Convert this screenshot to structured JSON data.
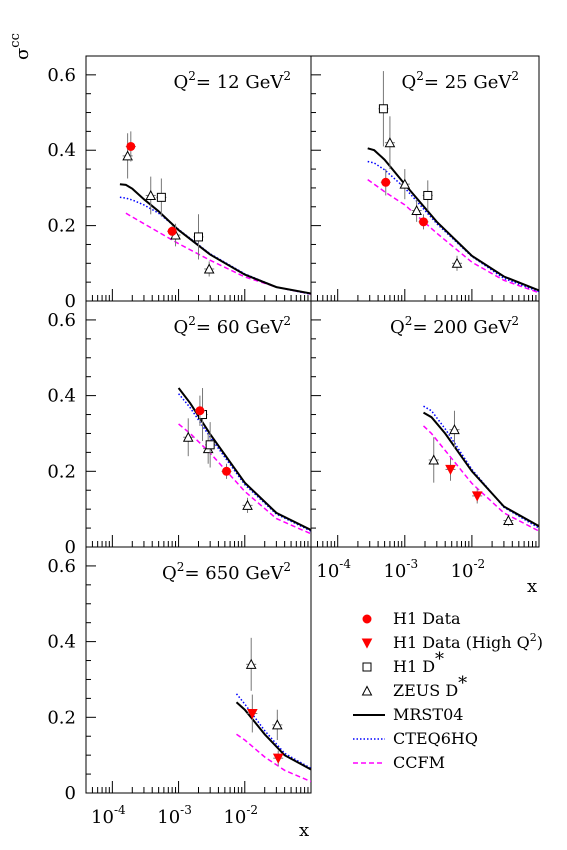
{
  "chart_data": {
    "type": "scatter",
    "ylabel": "σ̃ cc̄",
    "ylabel_main": "σ",
    "ylabel_sup": "cc",
    "xlabel": "x",
    "x_scale": "log",
    "xlim": [
      4e-05,
      0.1
    ],
    "ylim": [
      0,
      0.65
    ],
    "y_ticks": [
      "0",
      "0.2",
      "0.4",
      "0.6"
    ],
    "x_ticks": [
      {
        "base": "10",
        "exp": "-4"
      },
      {
        "base": "10",
        "exp": "-3"
      },
      {
        "base": "10",
        "exp": "-2"
      }
    ],
    "legend": {
      "position": "bottom-right",
      "entries": [
        {
          "key": "h1",
          "label": "H1 Data",
          "marker": "circle",
          "color": "#ff0000"
        },
        {
          "key": "h1high",
          "label_prefix": "H1 Data (High Q",
          "label_sup": "2",
          "label_suffix": ")",
          "marker": "triangle-down",
          "color": "#ff0000"
        },
        {
          "key": "h1dstar",
          "label_prefix": "H1 D",
          "label_sup": "*",
          "marker": "open-square",
          "color": "#000000"
        },
        {
          "key": "zeus",
          "label_prefix": "ZEUS D",
          "label_sup": "*",
          "marker": "open-triangle",
          "color": "#000000"
        },
        {
          "key": "mrst",
          "label": "MRST04",
          "line": "solid",
          "color": "#000000"
        },
        {
          "key": "cteq",
          "label": "CTEQ6HQ",
          "line": "dotted",
          "color": "#0000ff"
        },
        {
          "key": "ccfm",
          "label": "CCFM",
          "line": "dashed",
          "color": "#ff00ff"
        }
      ]
    },
    "panels": [
      {
        "label_prefix": "Q",
        "label_sup": "2",
        "label_value": "= 12 GeV",
        "label_sup2": "2",
        "h1": [
          {
            "x": 0.00019,
            "y": 0.41,
            "err": 0.04
          },
          {
            "x": 0.0008,
            "y": 0.185,
            "err": 0.015
          }
        ],
        "h1high": [],
        "h1dstar": [
          {
            "x": 0.00055,
            "y": 0.275,
            "err": 0.05
          },
          {
            "x": 0.002,
            "y": 0.17,
            "err": 0.06
          }
        ],
        "zeus": [
          {
            "x": 0.00017,
            "y": 0.385,
            "err": 0.06
          },
          {
            "x": 0.00038,
            "y": 0.28,
            "err": 0.05
          },
          {
            "x": 0.0009,
            "y": 0.175,
            "err": 0.03
          },
          {
            "x": 0.0029,
            "y": 0.085,
            "err": 0.02
          }
        ],
        "mrst": [
          [
            0.00013,
            0.31
          ],
          [
            0.00016,
            0.308
          ],
          [
            0.0002,
            0.298
          ],
          [
            0.0003,
            0.27
          ],
          [
            0.0005,
            0.238
          ],
          [
            0.001,
            0.188
          ],
          [
            0.003,
            0.123
          ],
          [
            0.01,
            0.07
          ],
          [
            0.03,
            0.037
          ],
          [
            0.1,
            0.02
          ]
        ],
        "cteq": [
          [
            0.00013,
            0.275
          ],
          [
            0.00016,
            0.273
          ],
          [
            0.0002,
            0.268
          ],
          [
            0.0003,
            0.255
          ],
          [
            0.0005,
            0.233
          ],
          [
            0.001,
            0.19
          ],
          [
            0.003,
            0.125
          ],
          [
            0.01,
            0.072
          ],
          [
            0.03,
            0.037
          ],
          [
            0.1,
            0.018
          ]
        ],
        "ccfm": [
          [
            0.00016,
            0.233
          ],
          [
            0.0003,
            0.205
          ],
          [
            0.001,
            0.152
          ],
          [
            0.003,
            0.108
          ],
          [
            0.01,
            0.064
          ],
          [
            0.03,
            0.037
          ],
          [
            0.1,
            0.018
          ]
        ]
      },
      {
        "label_prefix": "Q",
        "label_sup": "2",
        "label_value": "= 25 GeV",
        "label_sup2": "2",
        "h1": [
          {
            "x": 0.00052,
            "y": 0.315,
            "err": 0.035
          },
          {
            "x": 0.0019,
            "y": 0.21,
            "err": 0.02
          }
        ],
        "h1high": [],
        "h1dstar": [
          {
            "x": 0.00048,
            "y": 0.51,
            "err": 0.1
          },
          {
            "x": 0.0022,
            "y": 0.28,
            "err": 0.04
          }
        ],
        "zeus": [
          {
            "x": 0.0006,
            "y": 0.42,
            "err": 0.07
          },
          {
            "x": 0.001,
            "y": 0.31,
            "err": 0.04
          },
          {
            "x": 0.0015,
            "y": 0.24,
            "err": 0.03
          },
          {
            "x": 0.006,
            "y": 0.1,
            "err": 0.02
          }
        ],
        "mrst": [
          [
            0.00028,
            0.405
          ],
          [
            0.00035,
            0.4
          ],
          [
            0.0005,
            0.375
          ],
          [
            0.001,
            0.31
          ],
          [
            0.003,
            0.21
          ],
          [
            0.01,
            0.12
          ],
          [
            0.03,
            0.065
          ],
          [
            0.1,
            0.028
          ]
        ],
        "cteq": [
          [
            0.00028,
            0.37
          ],
          [
            0.00035,
            0.366
          ],
          [
            0.0005,
            0.348
          ],
          [
            0.001,
            0.3
          ],
          [
            0.003,
            0.205
          ],
          [
            0.01,
            0.118
          ],
          [
            0.03,
            0.06
          ],
          [
            0.1,
            0.025
          ]
        ],
        "ccfm": [
          [
            0.00028,
            0.322
          ],
          [
            0.0005,
            0.29
          ],
          [
            0.001,
            0.255
          ],
          [
            0.003,
            0.18
          ],
          [
            0.01,
            0.103
          ],
          [
            0.03,
            0.055
          ],
          [
            0.1,
            0.022
          ]
        ]
      },
      {
        "label_prefix": "Q",
        "label_sup": "2",
        "label_value": "= 60 GeV",
        "label_sup2": "2",
        "h1": [
          {
            "x": 0.0021,
            "y": 0.36,
            "err": 0.04
          },
          {
            "x": 0.0053,
            "y": 0.2,
            "err": 0.02
          }
        ],
        "h1high": [],
        "h1dstar": [
          {
            "x": 0.0023,
            "y": 0.35,
            "err": 0.07
          },
          {
            "x": 0.003,
            "y": 0.27,
            "err": 0.06
          }
        ],
        "zeus": [
          {
            "x": 0.0014,
            "y": 0.29,
            "err": 0.05
          },
          {
            "x": 0.0028,
            "y": 0.26,
            "err": 0.04
          },
          {
            "x": 0.011,
            "y": 0.11,
            "err": 0.02
          }
        ],
        "mrst": [
          [
            0.001,
            0.42
          ],
          [
            0.0015,
            0.38
          ],
          [
            0.003,
            0.298
          ],
          [
            0.01,
            0.17
          ],
          [
            0.03,
            0.09
          ],
          [
            0.1,
            0.045
          ]
        ],
        "cteq": [
          [
            0.001,
            0.405
          ],
          [
            0.0015,
            0.368
          ],
          [
            0.003,
            0.29
          ],
          [
            0.01,
            0.165
          ],
          [
            0.03,
            0.087
          ],
          [
            0.1,
            0.042
          ]
        ],
        "ccfm": [
          [
            0.001,
            0.325
          ],
          [
            0.0015,
            0.3
          ],
          [
            0.003,
            0.248
          ],
          [
            0.01,
            0.147
          ],
          [
            0.03,
            0.075
          ],
          [
            0.1,
            0.035
          ]
        ]
      },
      {
        "label_prefix": "Q",
        "label_sup": "2",
        "label_value": "= 200 GeV",
        "label_sup2": "2",
        "h1": [],
        "h1high": [
          {
            "x": 0.0048,
            "y": 0.205,
            "err": 0.03
          },
          {
            "x": 0.012,
            "y": 0.135,
            "err": 0.02
          }
        ],
        "h1dstar": [],
        "zeus": [
          {
            "x": 0.0027,
            "y": 0.23,
            "err": 0.06
          },
          {
            "x": 0.0055,
            "y": 0.31,
            "err": 0.05
          },
          {
            "x": 0.035,
            "y": 0.07,
            "err": 0.015
          }
        ],
        "mrst": [
          [
            0.0019,
            0.355
          ],
          [
            0.0025,
            0.343
          ],
          [
            0.004,
            0.3
          ],
          [
            0.01,
            0.2
          ],
          [
            0.03,
            0.107
          ],
          [
            0.1,
            0.055
          ]
        ],
        "cteq": [
          [
            0.0019,
            0.372
          ],
          [
            0.0025,
            0.36
          ],
          [
            0.004,
            0.312
          ],
          [
            0.01,
            0.205
          ],
          [
            0.03,
            0.105
          ],
          [
            0.1,
            0.05
          ]
        ],
        "ccfm": [
          [
            0.0019,
            0.32
          ],
          [
            0.0025,
            0.3
          ],
          [
            0.004,
            0.255
          ],
          [
            0.01,
            0.168
          ],
          [
            0.03,
            0.09
          ],
          [
            0.1,
            0.042
          ]
        ]
      },
      {
        "label_prefix": "Q",
        "label_sup": "2",
        "label_value": "= 650 GeV",
        "label_sup2": "2",
        "h1": [],
        "h1high": [
          {
            "x": 0.013,
            "y": 0.21,
            "err": 0.05
          },
          {
            "x": 0.032,
            "y": 0.092,
            "err": 0.02
          }
        ],
        "h1dstar": [],
        "zeus": [
          {
            "x": 0.0125,
            "y": 0.34,
            "err": 0.07
          },
          {
            "x": 0.031,
            "y": 0.18,
            "err": 0.04
          }
        ],
        "mrst": [
          [
            0.0075,
            0.24
          ],
          [
            0.01,
            0.22
          ],
          [
            0.02,
            0.155
          ],
          [
            0.04,
            0.1
          ],
          [
            0.1,
            0.062
          ]
        ],
        "cteq": [
          [
            0.0075,
            0.262
          ],
          [
            0.01,
            0.235
          ],
          [
            0.02,
            0.165
          ],
          [
            0.04,
            0.105
          ],
          [
            0.1,
            0.065
          ]
        ],
        "ccfm": [
          [
            0.0075,
            0.155
          ],
          [
            0.01,
            0.14
          ],
          [
            0.02,
            0.095
          ],
          [
            0.04,
            0.06
          ],
          [
            0.1,
            0.03
          ]
        ]
      }
    ]
  }
}
